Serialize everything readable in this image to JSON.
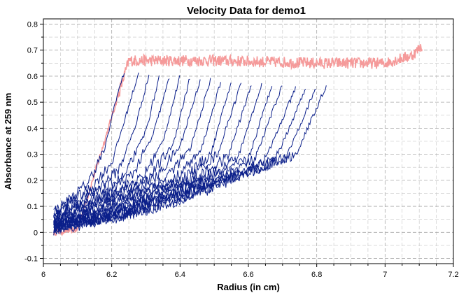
{
  "chart_data": {
    "type": "line",
    "title": "Velocity Data for demo1",
    "xlabel": "Radius (in cm)",
    "ylabel": "Absorbance at 259 nm",
    "xlim": [
      6.0,
      7.2
    ],
    "ylim": [
      -0.12,
      0.82
    ],
    "x_ticks": [
      "6",
      "6.2",
      "6.4",
      "6.6",
      "6.8",
      "7",
      "7.2"
    ],
    "y_ticks": [
      "-0.1",
      "0",
      "0.1",
      "0.2",
      "0.3",
      "0.4",
      "0.5",
      "0.6",
      "0.7",
      "0.8"
    ],
    "grid": true,
    "colors": {
      "scans": "#0b1f8a",
      "plateau": "#f59a9a"
    },
    "series": [
      {
        "values": [
          [
            6.03,
            0.08
          ],
          [
            6.08,
            0.13
          ],
          [
            6.13,
            0.19
          ],
          [
            6.18,
            0.32
          ],
          [
            6.21,
            0.5
          ],
          [
            6.24,
            0.63
          ]
        ]
      },
      {
        "values": [
          [
            6.03,
            0.07
          ],
          [
            6.08,
            0.12
          ],
          [
            6.14,
            0.17
          ],
          [
            6.2,
            0.27
          ],
          [
            6.24,
            0.44
          ],
          [
            6.28,
            0.62
          ]
        ]
      },
      {
        "values": [
          [
            6.03,
            0.06
          ],
          [
            6.09,
            0.11
          ],
          [
            6.15,
            0.16
          ],
          [
            6.22,
            0.24
          ],
          [
            6.27,
            0.41
          ],
          [
            6.31,
            0.61
          ]
        ]
      },
      {
        "values": [
          [
            6.03,
            0.06
          ],
          [
            6.1,
            0.11
          ],
          [
            6.17,
            0.16
          ],
          [
            6.24,
            0.22
          ],
          [
            6.3,
            0.39
          ],
          [
            6.34,
            0.6
          ]
        ]
      },
      {
        "values": [
          [
            6.03,
            0.05
          ],
          [
            6.1,
            0.1
          ],
          [
            6.18,
            0.15
          ],
          [
            6.26,
            0.22
          ],
          [
            6.32,
            0.37
          ],
          [
            6.37,
            0.6
          ]
        ]
      },
      {
        "values": [
          [
            6.03,
            0.05
          ],
          [
            6.11,
            0.1
          ],
          [
            6.2,
            0.15
          ],
          [
            6.29,
            0.21
          ],
          [
            6.35,
            0.35
          ],
          [
            6.4,
            0.6
          ]
        ]
      },
      {
        "values": [
          [
            6.03,
            0.04
          ],
          [
            6.12,
            0.09
          ],
          [
            6.21,
            0.15
          ],
          [
            6.31,
            0.21
          ],
          [
            6.38,
            0.34
          ],
          [
            6.43,
            0.6
          ]
        ]
      },
      {
        "values": [
          [
            6.03,
            0.04
          ],
          [
            6.12,
            0.09
          ],
          [
            6.22,
            0.14
          ],
          [
            6.33,
            0.21
          ],
          [
            6.4,
            0.33
          ],
          [
            6.46,
            0.59
          ]
        ]
      },
      {
        "values": [
          [
            6.03,
            0.04
          ],
          [
            6.13,
            0.08
          ],
          [
            6.24,
            0.14
          ],
          [
            6.35,
            0.2
          ],
          [
            6.43,
            0.32
          ],
          [
            6.49,
            0.59
          ]
        ]
      },
      {
        "values": [
          [
            6.03,
            0.03
          ],
          [
            6.14,
            0.08
          ],
          [
            6.25,
            0.14
          ],
          [
            6.38,
            0.2
          ],
          [
            6.46,
            0.31
          ],
          [
            6.52,
            0.58
          ]
        ]
      },
      {
        "values": [
          [
            6.03,
            0.03
          ],
          [
            6.15,
            0.08
          ],
          [
            6.27,
            0.14
          ],
          [
            6.4,
            0.2
          ],
          [
            6.49,
            0.3
          ],
          [
            6.55,
            0.58
          ]
        ]
      },
      {
        "values": [
          [
            6.03,
            0.03
          ],
          [
            6.16,
            0.07
          ],
          [
            6.28,
            0.13
          ],
          [
            6.42,
            0.2
          ],
          [
            6.51,
            0.3
          ],
          [
            6.58,
            0.58
          ]
        ]
      },
      {
        "values": [
          [
            6.03,
            0.03
          ],
          [
            6.16,
            0.07
          ],
          [
            6.3,
            0.13
          ],
          [
            6.44,
            0.2
          ],
          [
            6.54,
            0.29
          ],
          [
            6.61,
            0.57
          ]
        ]
      },
      {
        "values": [
          [
            6.03,
            0.02
          ],
          [
            6.17,
            0.07
          ],
          [
            6.31,
            0.13
          ],
          [
            6.46,
            0.2
          ],
          [
            6.57,
            0.29
          ],
          [
            6.64,
            0.57
          ]
        ]
      },
      {
        "values": [
          [
            6.03,
            0.02
          ],
          [
            6.18,
            0.07
          ],
          [
            6.33,
            0.13
          ],
          [
            6.48,
            0.2
          ],
          [
            6.6,
            0.28
          ],
          [
            6.67,
            0.57
          ]
        ]
      },
      {
        "values": [
          [
            6.03,
            0.02
          ],
          [
            6.19,
            0.06
          ],
          [
            6.34,
            0.13
          ],
          [
            6.5,
            0.2
          ],
          [
            6.62,
            0.28
          ],
          [
            6.7,
            0.57
          ]
        ]
      },
      {
        "values": [
          [
            6.03,
            0.02
          ],
          [
            6.2,
            0.06
          ],
          [
            6.36,
            0.13
          ],
          [
            6.52,
            0.2
          ],
          [
            6.65,
            0.28
          ],
          [
            6.74,
            0.56
          ]
        ]
      },
      {
        "values": [
          [
            6.03,
            0.02
          ],
          [
            6.21,
            0.06
          ],
          [
            6.38,
            0.13
          ],
          [
            6.55,
            0.21
          ],
          [
            6.68,
            0.28
          ],
          [
            6.77,
            0.56
          ]
        ]
      },
      {
        "values": [
          [
            6.03,
            0.01
          ],
          [
            6.22,
            0.06
          ],
          [
            6.4,
            0.13
          ],
          [
            6.58,
            0.22
          ],
          [
            6.71,
            0.29
          ],
          [
            6.8,
            0.56
          ]
        ]
      },
      {
        "values": [
          [
            6.03,
            0.01
          ],
          [
            6.23,
            0.06
          ],
          [
            6.42,
            0.13
          ],
          [
            6.6,
            0.23
          ],
          [
            6.74,
            0.3
          ],
          [
            6.83,
            0.57
          ]
        ]
      }
    ],
    "plateau": {
      "values": [
        [
          6.03,
          0.0
        ],
        [
          6.1,
          0.01
        ],
        [
          6.25,
          0.66
        ],
        [
          6.5,
          0.66
        ],
        [
          6.8,
          0.65
        ],
        [
          7.0,
          0.65
        ],
        [
          7.08,
          0.68
        ],
        [
          7.11,
          0.72
        ]
      ]
    }
  }
}
